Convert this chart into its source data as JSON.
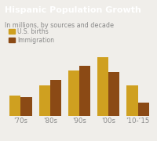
{
  "title": "Hispanic Population Growth",
  "subtitle": "In millions, by sources and decade",
  "categories": [
    "'70s",
    "'80s",
    "'90s",
    "'00s",
    "'10-’15"
  ],
  "births": [
    2.1,
    3.2,
    4.8,
    6.2,
    3.2
  ],
  "immigration": [
    2.0,
    3.8,
    5.3,
    4.6,
    1.4
  ],
  "color_births": "#CFA020",
  "color_immigration": "#8B4A15",
  "background_color": "#F0EEEA",
  "title_bg_color": "#1A1A1A",
  "title_text_color": "#FFFFFF",
  "subtitle_color": "#888888",
  "legend_births": "U.S. births",
  "legend_immigration": "Immigration",
  "tick_color": "#888888",
  "bar_width": 0.38,
  "ylim": [
    0,
    7.5
  ]
}
